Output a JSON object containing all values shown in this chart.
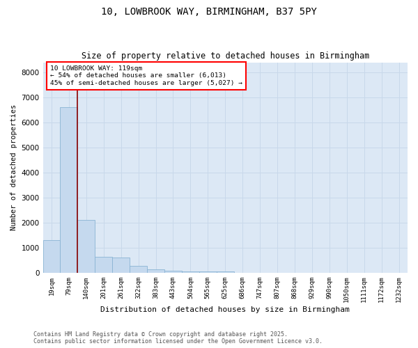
{
  "title1": "10, LOWBROOK WAY, BIRMINGHAM, B37 5PY",
  "title2": "Size of property relative to detached houses in Birmingham",
  "xlabel": "Distribution of detached houses by size in Birmingham",
  "ylabel": "Number of detached properties",
  "categories": [
    "19sqm",
    "79sqm",
    "140sqm",
    "201sqm",
    "261sqm",
    "322sqm",
    "383sqm",
    "443sqm",
    "504sqm",
    "565sqm",
    "625sqm",
    "686sqm",
    "747sqm",
    "807sqm",
    "868sqm",
    "929sqm",
    "990sqm",
    "1050sqm",
    "1111sqm",
    "1172sqm",
    "1232sqm"
  ],
  "values": [
    1300,
    6600,
    2100,
    650,
    620,
    290,
    140,
    95,
    50,
    45,
    45,
    0,
    0,
    0,
    0,
    0,
    0,
    0,
    0,
    0,
    0
  ],
  "bar_color": "#c5d9ee",
  "bar_edge_color": "#8ab4d4",
  "red_line_x": 1.5,
  "annotation_line1": "10 LOWBROOK WAY: 119sqm",
  "annotation_line2": "← 54% of detached houses are smaller (6,013)",
  "annotation_line3": "45% of semi-detached houses are larger (5,027) →",
  "ylim": [
    0,
    8400
  ],
  "yticks": [
    0,
    1000,
    2000,
    3000,
    4000,
    5000,
    6000,
    7000,
    8000
  ],
  "grid_color": "#c8d8ea",
  "bg_color": "#dce8f5",
  "footer1": "Contains HM Land Registry data © Crown copyright and database right 2025.",
  "footer2": "Contains public sector information licensed under the Open Government Licence v3.0."
}
